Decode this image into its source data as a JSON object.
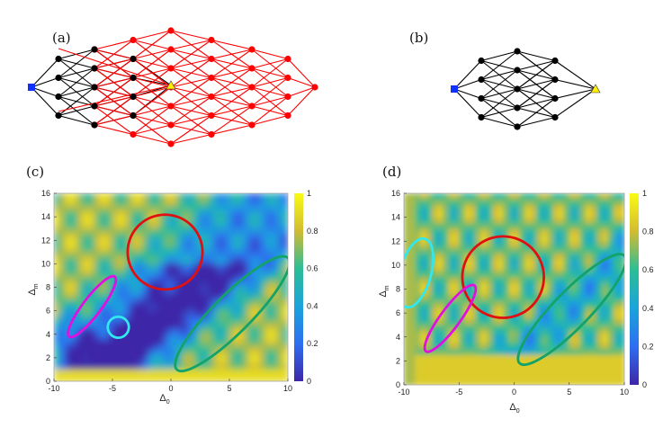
{
  "panels": {
    "a": {
      "label": "(a)"
    },
    "b": {
      "label": "(b)"
    },
    "c": {
      "label": "(c)"
    },
    "d": {
      "label": "(d)"
    }
  },
  "axes": {
    "x_main": "Δ",
    "x_sub": "0",
    "y_main": "Δ",
    "y_sub": "m"
  },
  "colors": {
    "network_black": "#000000",
    "network_red": "#ff0000",
    "source_node": "#1030ff",
    "target_node": "#ffee00",
    "ellipse_red": "#e01010",
    "ellipse_green": "#13a36a",
    "ellipse_magenta": "#e010e0",
    "ellipse_cyan": "#30e8ee"
  },
  "chart_data": [
    {
      "type": "heatmap",
      "panel": "(c)",
      "xlabel": "Δ0",
      "ylabel": "Δm",
      "xlim": [
        -10,
        10
      ],
      "ylim": [
        0,
        16
      ],
      "x_ticks": [
        "-10",
        "-5",
        "0",
        "5",
        "10"
      ],
      "y_ticks": [
        "0",
        "2",
        "4",
        "6",
        "8",
        "10",
        "12",
        "14",
        "16"
      ],
      "colorbar": {
        "range": [
          0,
          1
        ],
        "ticks": [
          "0",
          "0.2",
          "0.4",
          "0.6",
          "0.8",
          "1"
        ]
      },
      "colormap": "parula",
      "annotations": [
        {
          "shape": "circle",
          "color": "red",
          "center": [
            -0.5,
            11
          ],
          "radius_x": 3.2
        },
        {
          "shape": "ellipse",
          "color": "green",
          "center": [
            5.5,
            5.5
          ],
          "span": [
            [
              0.5,
              1
            ],
            [
              10,
              10.5
            ]
          ]
        },
        {
          "shape": "ellipse",
          "color": "magenta",
          "center": [
            -6.3,
            6.2
          ],
          "span": [
            [
              -8.7,
              3.8
            ],
            [
              -4.8,
              8.9
            ]
          ]
        },
        {
          "shape": "circle",
          "color": "cyan",
          "center": [
            -4.5,
            4.6
          ],
          "radius_x": 0.9
        }
      ]
    },
    {
      "type": "heatmap",
      "panel": "(d)",
      "xlabel": "Δ0",
      "ylabel": "Δm",
      "xlim": [
        -10,
        10
      ],
      "ylim": [
        0,
        16
      ],
      "x_ticks": [
        "-10",
        "-5",
        "0",
        "5",
        "10"
      ],
      "y_ticks": [
        "0",
        "2",
        "4",
        "6",
        "8",
        "10",
        "12",
        "14",
        "16"
      ],
      "colorbar": {
        "range": [
          0,
          1
        ],
        "ticks": [
          "0",
          "0.2",
          "0.4",
          "0.6",
          "0.8",
          "1"
        ]
      },
      "colormap": "parula",
      "annotations": [
        {
          "shape": "circle",
          "color": "red",
          "center": [
            -1,
            9
          ],
          "radius_x": 3.7
        },
        {
          "shape": "ellipse",
          "color": "green",
          "center": [
            5,
            6.3
          ],
          "span": [
            [
              0.5,
              1.8
            ],
            [
              10,
              10.8
            ]
          ]
        },
        {
          "shape": "ellipse",
          "color": "magenta",
          "center": [
            -5.8,
            5.5
          ],
          "span": [
            [
              -8,
              2.8
            ],
            [
              -3.6,
              8.3
            ]
          ]
        },
        {
          "shape": "ellipse",
          "color": "cyan",
          "center": [
            -9,
            9.3
          ],
          "span": [
            [
              -9.8,
              6.5
            ],
            [
              -8.1,
              12.2
            ]
          ]
        }
      ]
    }
  ]
}
